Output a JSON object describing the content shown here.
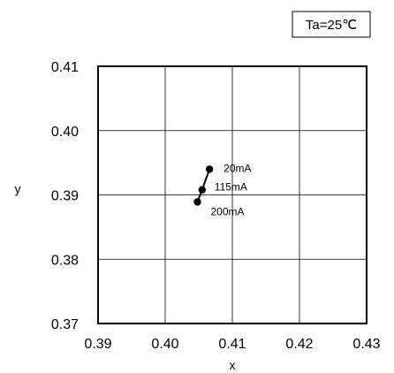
{
  "chart_data": {
    "type": "line",
    "condition_label": "Ta=25℃",
    "xlabel": "x",
    "ylabel": "y",
    "xlim": [
      0.39,
      0.43
    ],
    "ylim": [
      0.37,
      0.41
    ],
    "x_ticks": [
      "0.39",
      "0.40",
      "0.41",
      "0.42",
      "0.43"
    ],
    "y_ticks": [
      "0.37",
      "0.38",
      "0.39",
      "0.40",
      "0.41"
    ],
    "grid": true,
    "series": [
      {
        "points": [
          {
            "x": 0.4066,
            "y": 0.394,
            "label": "20mA"
          },
          {
            "x": 0.4055,
            "y": 0.3908,
            "label": "115mA"
          },
          {
            "x": 0.4048,
            "y": 0.3889,
            "label": "200mA"
          }
        ]
      }
    ]
  }
}
